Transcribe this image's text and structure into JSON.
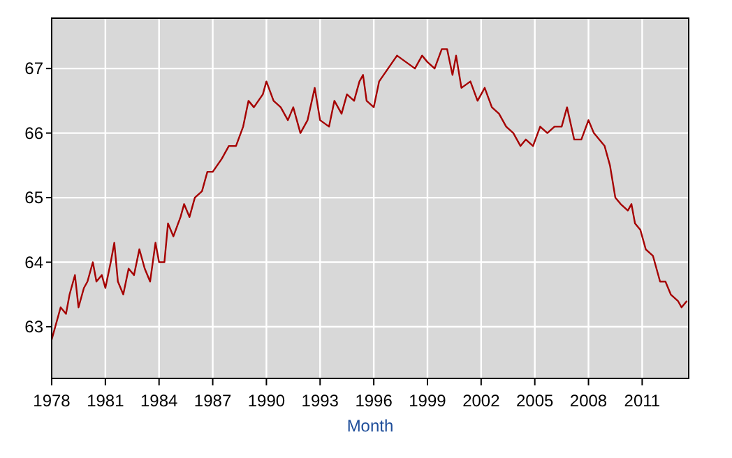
{
  "chart_data": {
    "type": "line",
    "xlabel": "Month",
    "xlim": [
      1978,
      2013.6
    ],
    "ylim": [
      62.2,
      67.78
    ],
    "xticks": [
      1978,
      1981,
      1984,
      1987,
      1990,
      1993,
      1996,
      1999,
      2002,
      2005,
      2008,
      2011
    ],
    "yticks": [
      63,
      64,
      65,
      66,
      67
    ],
    "grid": true,
    "series": [
      {
        "color": "#a50000",
        "x": [
          1978.0,
          1978.2,
          1978.5,
          1978.8,
          1979.0,
          1979.3,
          1979.5,
          1979.8,
          1980.0,
          1980.3,
          1980.5,
          1980.8,
          1981.0,
          1981.3,
          1981.5,
          1981.7,
          1982.0,
          1982.3,
          1982.6,
          1982.9,
          1983.2,
          1983.5,
          1983.8,
          1984.0,
          1984.3,
          1984.5,
          1984.8,
          1985.2,
          1985.4,
          1985.7,
          1986.0,
          1986.4,
          1986.7,
          1987.0,
          1987.5,
          1987.9,
          1988.3,
          1988.7,
          1989.0,
          1989.3,
          1989.8,
          1990.0,
          1990.4,
          1990.8,
          1991.2,
          1991.5,
          1991.9,
          1992.3,
          1992.7,
          1993.0,
          1993.5,
          1993.8,
          1994.2,
          1994.5,
          1994.9,
          1995.2,
          1995.4,
          1995.6,
          1996.0,
          1996.3,
          1996.8,
          1997.3,
          1997.8,
          1998.3,
          1998.7,
          1999.0,
          1999.4,
          1999.8,
          2000.1,
          2000.4,
          2000.6,
          2000.9,
          2001.4,
          2001.8,
          2002.2,
          2002.6,
          2003.0,
          2003.4,
          2003.8,
          2004.2,
          2004.5,
          2004.9,
          2005.3,
          2005.7,
          2006.1,
          2006.5,
          2006.8,
          2007.2,
          2007.6,
          2008.0,
          2008.3,
          2008.6,
          2008.9,
          2009.2,
          2009.5,
          2009.8,
          2010.2,
          2010.4,
          2010.6,
          2010.9,
          2011.2,
          2011.6,
          2012.0,
          2012.3,
          2012.6,
          2013.0,
          2013.2,
          2013.5
        ],
        "values": [
          62.8,
          63.0,
          63.3,
          63.2,
          63.5,
          63.8,
          63.3,
          63.6,
          63.7,
          64.0,
          63.7,
          63.8,
          63.6,
          64.0,
          64.3,
          63.7,
          63.5,
          63.9,
          63.8,
          64.2,
          63.9,
          63.7,
          64.3,
          64.0,
          64.0,
          64.6,
          64.4,
          64.7,
          64.9,
          64.7,
          65.0,
          65.1,
          65.4,
          65.4,
          65.6,
          65.8,
          65.8,
          66.1,
          66.5,
          66.4,
          66.6,
          66.8,
          66.5,
          66.4,
          66.2,
          66.4,
          66.0,
          66.2,
          66.7,
          66.2,
          66.1,
          66.5,
          66.3,
          66.6,
          66.5,
          66.8,
          66.9,
          66.5,
          66.4,
          66.8,
          67.0,
          67.2,
          67.1,
          67.0,
          67.2,
          67.1,
          67.0,
          67.3,
          67.3,
          66.9,
          67.2,
          66.7,
          66.8,
          66.5,
          66.7,
          66.4,
          66.3,
          66.1,
          66.0,
          65.8,
          65.9,
          65.8,
          66.1,
          66.0,
          66.1,
          66.1,
          66.4,
          65.9,
          65.9,
          66.2,
          66.0,
          65.9,
          65.8,
          65.5,
          65.0,
          64.9,
          64.8,
          64.9,
          64.6,
          64.5,
          64.2,
          64.1,
          63.7,
          63.7,
          63.5,
          63.4,
          63.3,
          63.4
        ]
      }
    ]
  }
}
